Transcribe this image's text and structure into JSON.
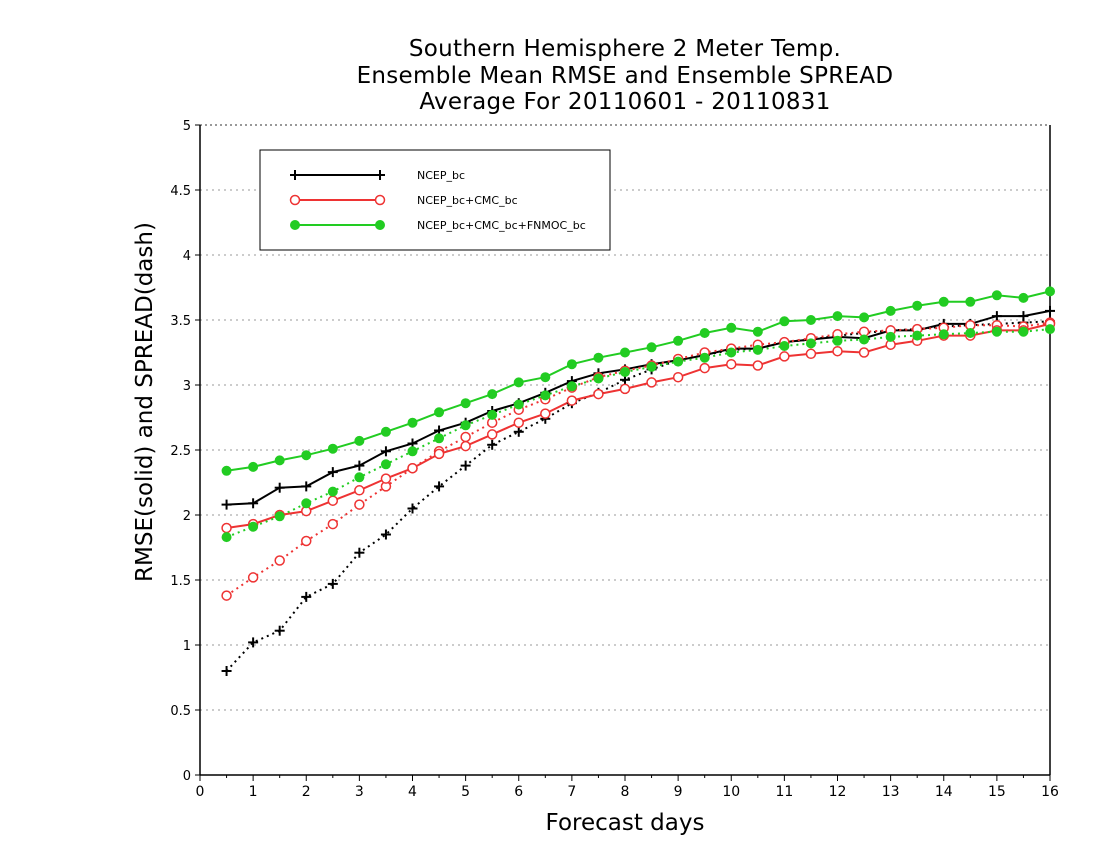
{
  "chart_data": {
    "type": "line",
    "title": [
      "Southern Hemisphere 2 Meter Temp.",
      "Ensemble Mean RMSE and Ensemble SPREAD",
      "Average For 20110601 - 20110831"
    ],
    "xlabel": "Forecast days",
    "ylabel": "RMSE(solid) and SPREAD(dash)",
    "xlim": [
      0,
      16
    ],
    "ylim": [
      0,
      5
    ],
    "xticks": [
      "0",
      "1",
      "2",
      "3",
      "4",
      "5",
      "6",
      "7",
      "8",
      "9",
      "10",
      "11",
      "12",
      "13",
      "14",
      "15",
      "16"
    ],
    "yticks": [
      "0",
      "0.5",
      "1",
      "1.5",
      "2",
      "2.5",
      "3",
      "3.5",
      "4",
      "4.5",
      "5"
    ],
    "grid": "horizontal dotted",
    "legend_position": "top-left",
    "x": [
      0.5,
      1,
      1.5,
      2,
      2.5,
      3,
      3.5,
      4,
      4.5,
      5,
      5.5,
      6,
      6.5,
      7,
      7.5,
      8,
      8.5,
      9,
      9.5,
      10,
      10.5,
      11,
      11.5,
      12,
      12.5,
      13,
      13.5,
      14,
      14.5,
      15,
      15.5,
      16
    ],
    "series": [
      {
        "name": "NCEP_bc",
        "color": "#000000",
        "marker": "plus",
        "rmse": [
          2.08,
          2.09,
          2.21,
          2.22,
          2.33,
          2.38,
          2.49,
          2.55,
          2.65,
          2.71,
          2.8,
          2.86,
          2.94,
          3.03,
          3.09,
          3.12,
          3.16,
          3.19,
          3.23,
          3.28,
          3.28,
          3.33,
          3.35,
          3.37,
          3.36,
          3.42,
          3.42,
          3.47,
          3.47,
          3.53,
          3.53,
          3.57
        ],
        "spread": [
          0.8,
          1.02,
          1.11,
          1.37,
          1.47,
          1.71,
          1.85,
          2.05,
          2.22,
          2.38,
          2.54,
          2.64,
          2.74,
          2.86,
          2.94,
          3.04,
          3.12,
          3.19,
          3.23,
          3.27,
          3.28,
          3.33,
          3.35,
          3.38,
          3.4,
          3.42,
          3.43,
          3.45,
          3.46,
          3.47,
          3.48,
          3.49
        ]
      },
      {
        "name": "NCEP_bc+CMC_bc",
        "color": "#ee3333",
        "marker": "open-circle",
        "rmse": [
          1.9,
          1.93,
          2.0,
          2.03,
          2.11,
          2.19,
          2.28,
          2.36,
          2.47,
          2.53,
          2.62,
          2.71,
          2.78,
          2.88,
          2.93,
          2.97,
          3.02,
          3.06,
          3.13,
          3.16,
          3.15,
          3.22,
          3.24,
          3.26,
          3.25,
          3.31,
          3.34,
          3.38,
          3.38,
          3.42,
          3.42,
          3.47
        ],
        "spread": [
          1.38,
          1.52,
          1.65,
          1.8,
          1.93,
          2.08,
          2.22,
          2.36,
          2.49,
          2.6,
          2.71,
          2.81,
          2.89,
          2.98,
          3.06,
          3.11,
          3.15,
          3.2,
          3.25,
          3.28,
          3.31,
          3.33,
          3.36,
          3.39,
          3.41,
          3.42,
          3.43,
          3.44,
          3.46,
          3.46,
          3.45,
          3.48
        ]
      },
      {
        "name": "NCEP_bc+CMC_bc+FNMOC_bc",
        "color": "#22cc22",
        "marker": "filled-circle",
        "rmse": [
          2.34,
          2.37,
          2.42,
          2.46,
          2.51,
          2.57,
          2.64,
          2.71,
          2.79,
          2.86,
          2.93,
          3.02,
          3.06,
          3.16,
          3.21,
          3.25,
          3.29,
          3.34,
          3.4,
          3.44,
          3.41,
          3.49,
          3.5,
          3.53,
          3.52,
          3.57,
          3.61,
          3.64,
          3.64,
          3.69,
          3.67,
          3.72
        ],
        "spread": [
          1.83,
          1.91,
          1.99,
          2.09,
          2.18,
          2.29,
          2.39,
          2.49,
          2.59,
          2.69,
          2.77,
          2.85,
          2.92,
          2.99,
          3.05,
          3.1,
          3.14,
          3.18,
          3.21,
          3.25,
          3.27,
          3.3,
          3.32,
          3.34,
          3.35,
          3.37,
          3.38,
          3.39,
          3.4,
          3.41,
          3.41,
          3.43
        ]
      }
    ]
  }
}
